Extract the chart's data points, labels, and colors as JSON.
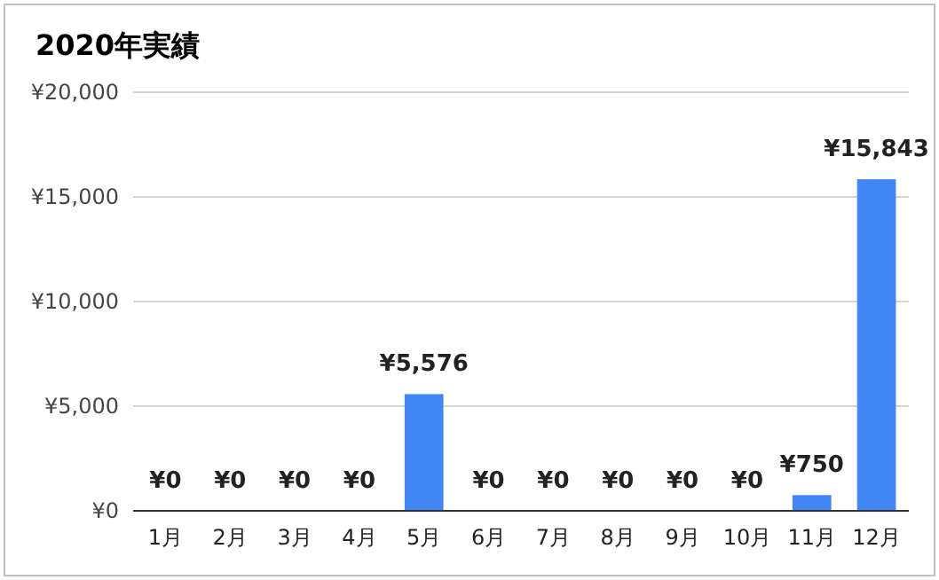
{
  "chart_data": {
    "type": "bar",
    "title": "2020年実績",
    "categories": [
      "1月",
      "2月",
      "3月",
      "4月",
      "5月",
      "6月",
      "7月",
      "8月",
      "9月",
      "10月",
      "11月",
      "12月"
    ],
    "values": [
      0,
      0,
      0,
      0,
      5576,
      0,
      0,
      0,
      0,
      0,
      750,
      15843
    ],
    "value_labels": [
      "¥0",
      "¥0",
      "¥0",
      "¥0",
      "¥5,576",
      "¥0",
      "¥0",
      "¥0",
      "¥0",
      "¥0",
      "¥750",
      "¥15,843"
    ],
    "color": "#4285f4",
    "ylim": [
      0,
      20000
    ],
    "yticks": [
      {
        "value": 0,
        "label": "¥0"
      },
      {
        "value": 5000,
        "label": "¥5,000"
      },
      {
        "value": 10000,
        "label": "¥10,000"
      },
      {
        "value": 15000,
        "label": "¥15,000"
      },
      {
        "value": 20000,
        "label": "¥20,000"
      }
    ],
    "grid": "y"
  }
}
